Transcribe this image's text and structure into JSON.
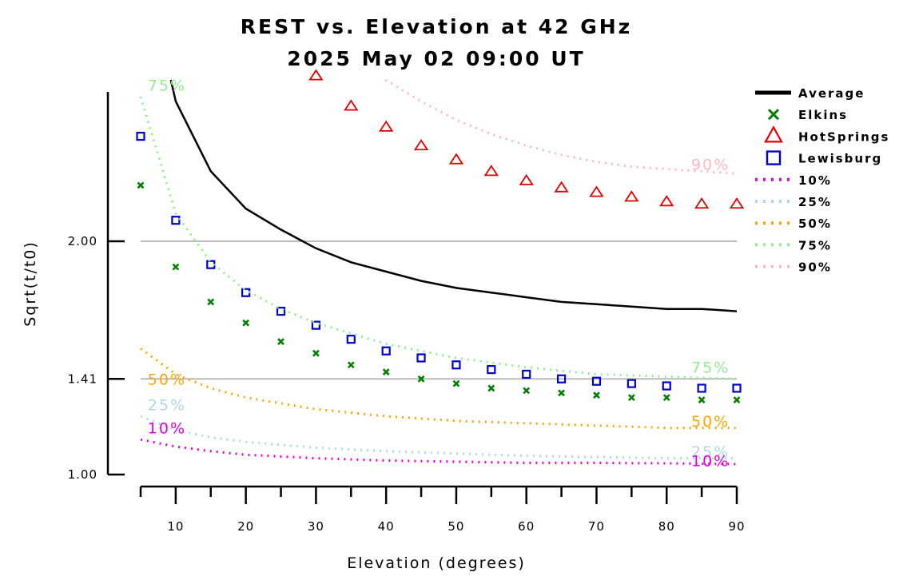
{
  "chart_data": {
    "type": "line",
    "title": "REST vs. Elevation at 42 GHz",
    "subtitle": "2025 May 02 09:00 UT",
    "xlabel": "Elevation (degrees)",
    "ylabel": "Sqrt(t/t0)",
    "xlim": [
      5,
      90
    ],
    "ylim": [
      1.0,
      2.7
    ],
    "x_ticks": [
      10,
      20,
      30,
      40,
      50,
      60,
      70,
      80,
      90
    ],
    "y_ticks": [
      {
        "value": 1.0,
        "label": "1.00"
      },
      {
        "value": 1.41,
        "label": "1.41"
      },
      {
        "value": 2.0,
        "label": "2.00"
      }
    ],
    "reference_lines": [
      1.41,
      2.0
    ],
    "legend_position": "right",
    "legend": [
      {
        "label": "Average",
        "key": "average"
      },
      {
        "label": "Elkins",
        "key": "elkins"
      },
      {
        "label": "HotSprings",
        "key": "hotsprings"
      },
      {
        "label": "Lewisburg",
        "key": "lewisburg"
      },
      {
        "label": "10%",
        "key": "p10"
      },
      {
        "label": "25%",
        "key": "p25"
      },
      {
        "label": "50%",
        "key": "p50"
      },
      {
        "label": "75%",
        "key": "p75"
      },
      {
        "label": "90%",
        "key": "p90"
      }
    ],
    "series": [
      {
        "key": "average",
        "name": "Average",
        "style": "line",
        "color": "#000000",
        "x": [
          8.5,
          10,
          15,
          20,
          25,
          30,
          35,
          40,
          45,
          50,
          55,
          60,
          65,
          70,
          75,
          80,
          85,
          90
        ],
        "y": [
          2.8,
          2.6,
          2.3,
          2.14,
          2.05,
          1.97,
          1.91,
          1.87,
          1.83,
          1.8,
          1.78,
          1.76,
          1.74,
          1.73,
          1.72,
          1.71,
          1.71,
          1.7
        ]
      },
      {
        "key": "elkins",
        "name": "Elkins",
        "style": "x",
        "color": "#008000",
        "x": [
          5,
          10,
          15,
          20,
          25,
          30,
          35,
          40,
          45,
          50,
          55,
          60,
          65,
          70,
          75,
          80,
          85,
          90
        ],
        "y": [
          2.24,
          1.89,
          1.74,
          1.65,
          1.57,
          1.52,
          1.47,
          1.44,
          1.41,
          1.39,
          1.37,
          1.36,
          1.35,
          1.34,
          1.33,
          1.33,
          1.32,
          1.32
        ]
      },
      {
        "key": "hotsprings",
        "name": "HotSprings",
        "style": "triangle",
        "color": "#e00000",
        "x": [
          30,
          35,
          40,
          45,
          50,
          55,
          60,
          65,
          70,
          75,
          80,
          85,
          90
        ],
        "y": [
          2.71,
          2.58,
          2.49,
          2.41,
          2.35,
          2.3,
          2.26,
          2.23,
          2.21,
          2.19,
          2.17,
          2.16,
          2.16
        ]
      },
      {
        "key": "lewisburg",
        "name": "Lewisburg",
        "style": "square",
        "color": "#0000cc",
        "x": [
          5,
          10,
          15,
          20,
          25,
          30,
          35,
          40,
          45,
          50,
          55,
          60,
          65,
          70,
          75,
          80,
          85,
          90
        ],
        "y": [
          2.45,
          2.09,
          1.9,
          1.78,
          1.7,
          1.64,
          1.58,
          1.53,
          1.5,
          1.47,
          1.45,
          1.43,
          1.41,
          1.4,
          1.39,
          1.38,
          1.37,
          1.37
        ]
      },
      {
        "key": "p10",
        "name": "10%",
        "style": "dotted",
        "color": "#e000e0",
        "x": [
          5,
          10,
          15,
          20,
          30,
          40,
          50,
          60,
          70,
          80,
          90
        ],
        "y": [
          1.15,
          1.12,
          1.1,
          1.085,
          1.07,
          1.06,
          1.055,
          1.05,
          1.05,
          1.048,
          1.045
        ]
      },
      {
        "key": "p25",
        "name": "25%",
        "style": "dotted",
        "color": "#add8e6",
        "x": [
          5,
          10,
          15,
          20,
          30,
          40,
          50,
          60,
          70,
          80,
          90
        ],
        "y": [
          1.25,
          1.19,
          1.16,
          1.14,
          1.115,
          1.1,
          1.09,
          1.08,
          1.075,
          1.07,
          1.07
        ]
      },
      {
        "key": "p50",
        "name": "50%",
        "style": "dotted",
        "color": "#ffa500",
        "x": [
          5,
          10,
          15,
          20,
          30,
          40,
          50,
          60,
          70,
          80,
          90
        ],
        "y": [
          1.54,
          1.43,
          1.37,
          1.33,
          1.28,
          1.25,
          1.23,
          1.22,
          1.21,
          1.2,
          1.2
        ]
      },
      {
        "key": "p75",
        "name": "75%",
        "style": "dotted",
        "color": "#90ee90",
        "x": [
          5,
          10,
          15,
          20,
          25,
          30,
          40,
          50,
          60,
          70,
          80,
          90
        ],
        "y": [
          2.62,
          2.12,
          1.91,
          1.79,
          1.71,
          1.65,
          1.56,
          1.5,
          1.46,
          1.43,
          1.42,
          1.41
        ]
      },
      {
        "key": "p90",
        "name": "90%",
        "style": "dotted",
        "color": "#ffb6c1",
        "x": [
          35,
          40,
          45,
          50,
          55,
          60,
          65,
          70,
          75,
          80,
          85,
          90
        ],
        "y": [
          2.79,
          2.69,
          2.6,
          2.52,
          2.46,
          2.41,
          2.37,
          2.34,
          2.32,
          2.31,
          2.3,
          2.29
        ]
      }
    ],
    "annotations": [
      {
        "text": "75%",
        "series": "p75",
        "x": 6,
        "y": 2.67,
        "anchor": "start"
      },
      {
        "text": "50%",
        "series": "p50",
        "x": 6,
        "y": 1.41,
        "anchor": "start"
      },
      {
        "text": "25%",
        "series": "p25",
        "x": 6,
        "y": 1.3,
        "anchor": "start"
      },
      {
        "text": "10%",
        "series": "p10",
        "x": 6,
        "y": 1.2,
        "anchor": "start"
      },
      {
        "text": "90%",
        "series": "p90",
        "x": 89,
        "y": 2.33,
        "anchor": "end"
      },
      {
        "text": "75%",
        "series": "p75",
        "x": 89,
        "y": 1.46,
        "anchor": "end"
      },
      {
        "text": "50%",
        "series": "p50",
        "x": 89,
        "y": 1.23,
        "anchor": "end"
      },
      {
        "text": "25%",
        "series": "p25",
        "x": 89,
        "y": 1.1,
        "anchor": "end"
      },
      {
        "text": "10%",
        "series": "p10",
        "x": 89,
        "y": 1.06,
        "anchor": "end"
      }
    ]
  }
}
